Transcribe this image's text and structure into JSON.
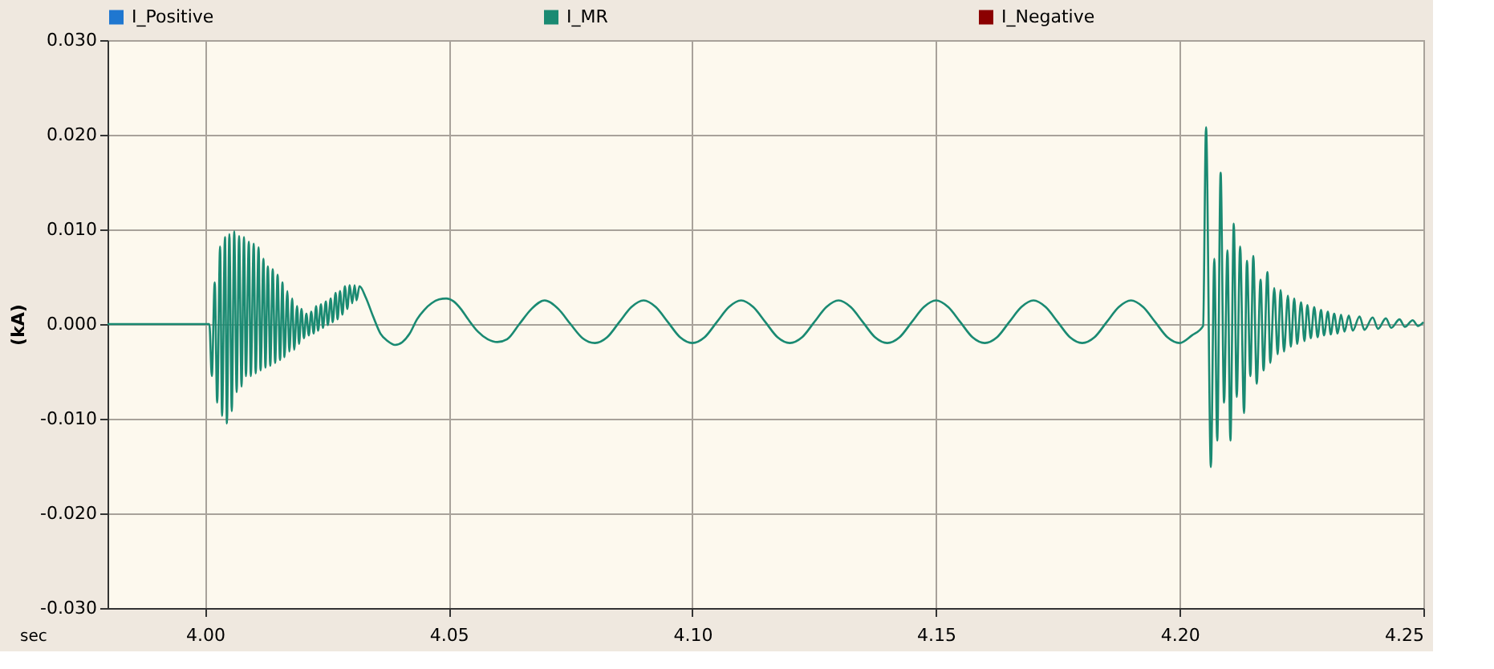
{
  "chart_data": {
    "type": "line",
    "ylabel": "(kA)",
    "xlabel": "sec",
    "xlim": [
      3.98,
      4.25
    ],
    "ylim": [
      -0.03,
      0.03
    ],
    "xticks": [
      {
        "value": 4.0,
        "label": "4.00"
      },
      {
        "value": 4.05,
        "label": "4.05"
      },
      {
        "value": 4.1,
        "label": "4.10"
      },
      {
        "value": 4.15,
        "label": "4.15"
      },
      {
        "value": 4.2,
        "label": "4.20"
      },
      {
        "value": 4.25,
        "label": "4.25"
      }
    ],
    "yticks": [
      {
        "value": -0.03,
        "label": "-0.030"
      },
      {
        "value": -0.02,
        "label": "-0.020"
      },
      {
        "value": -0.01,
        "label": "-0.010"
      },
      {
        "value": 0,
        "label": "0.000"
      },
      {
        "value": 0.01,
        "label": "0.010"
      },
      {
        "value": 0.02,
        "label": "0.020"
      },
      {
        "value": 0.03,
        "label": "0.030"
      }
    ],
    "grid": true,
    "legend": "top",
    "marker": "none",
    "line_style": "solid",
    "series": [
      {
        "name": "I_Positive",
        "color": "#1f77d0"
      },
      {
        "name": "I_MR",
        "color": "#1a8a72",
        "x": [
          3.98,
          4.0009,
          4.0014,
          4.002,
          4.0025,
          4.0031,
          4.0035,
          4.0041,
          4.0045,
          4.005,
          4.0055,
          4.006,
          4.0065,
          4.007,
          4.0075,
          4.008,
          4.0084,
          4.009,
          4.0094,
          4.01,
          4.0104,
          4.011,
          4.0114,
          4.012,
          4.0124,
          4.0129,
          4.0134,
          4.0139,
          4.0144,
          4.0149,
          4.0154,
          4.0159,
          4.0163,
          4.0169,
          4.0173,
          4.0179,
          4.0183,
          4.0189,
          4.0193,
          4.0198,
          4.0203,
          4.0208,
          4.0213,
          4.0218,
          4.0223,
          4.0228,
          4.0232,
          4.0238,
          4.0242,
          4.0248,
          4.0252,
          4.0258,
          4.0262,
          4.0268,
          4.0272,
          4.0277,
          4.0282,
          4.0287,
          4.0292,
          4.0297,
          4.0302,
          4.0307,
          4.0311,
          4.0317,
          4.033,
          4.0345,
          4.036,
          4.0375,
          4.039,
          4.0405,
          4.042,
          4.0435,
          4.045,
          4.0465,
          4.048,
          4.0495,
          4.051,
          4.0525,
          4.054,
          4.056,
          4.058,
          4.06,
          4.062,
          4.0645,
          4.067,
          4.0697,
          4.0725,
          4.075,
          4.0775,
          4.08,
          4.0825,
          4.085,
          4.0875,
          4.09,
          4.0925,
          4.095,
          4.0975,
          4.1,
          4.1025,
          4.105,
          4.1075,
          4.11,
          4.1125,
          4.115,
          4.1175,
          4.12,
          4.1225,
          4.125,
          4.1275,
          4.13,
          4.1325,
          4.135,
          4.1375,
          4.14,
          4.1425,
          4.145,
          4.1475,
          4.15,
          4.1525,
          4.155,
          4.1575,
          4.16,
          4.1625,
          4.165,
          4.1675,
          4.17,
          4.1725,
          4.175,
          4.1775,
          4.18,
          4.1825,
          4.185,
          4.1875,
          4.19,
          4.1925,
          4.195,
          4.1975,
          4.2,
          4.2025,
          4.2048,
          4.2054,
          4.2064,
          4.2071,
          4.2077,
          4.2084,
          4.2091,
          4.2098,
          4.2104,
          4.2111,
          4.2117,
          4.2124,
          4.2132,
          4.2138,
          4.2145,
          4.2151,
          4.2158,
          4.2166,
          4.2172,
          4.218,
          4.2186,
          4.2194,
          4.2201,
          4.2207,
          4.2214,
          4.2222,
          4.2228,
          4.2235,
          4.2241,
          4.2249,
          4.2256,
          4.2262,
          4.2269,
          4.2276,
          4.2283,
          4.229,
          4.2296,
          4.2304,
          4.231,
          4.2317,
          4.2324,
          4.2331,
          4.2338,
          4.2347,
          4.2355,
          4.2369,
          4.2379,
          4.2396,
          4.2407,
          4.2423,
          4.2434,
          4.2451,
          4.2462,
          4.2478,
          4.2489,
          4.25
        ],
        "values": [
          0,
          0,
          -0.0055,
          0.0044,
          -0.0083,
          0.0082,
          -0.0097,
          0.0092,
          -0.0105,
          0.0095,
          -0.0092,
          0.0098,
          -0.0072,
          0.0093,
          -0.0066,
          0.0092,
          -0.0055,
          0.0087,
          -0.0055,
          0.0085,
          -0.0052,
          0.0081,
          -0.0049,
          0.0069,
          -0.0046,
          0.0061,
          -0.0044,
          0.0058,
          -0.0041,
          0.0052,
          -0.0038,
          0.0044,
          -0.0035,
          0.0035,
          -0.0029,
          0.0027,
          -0.0027,
          0.0019,
          -0.0021,
          0.0016,
          -0.0015,
          0.0011,
          -0.0012,
          0.0013,
          -0.001,
          0.0019,
          -0.0007,
          0.0021,
          -0.0004,
          0.0024,
          -0.0001,
          0.0027,
          0.0002,
          0.0033,
          0.0005,
          0.0035,
          0.001,
          0.004,
          0.0016,
          0.0041,
          0.0022,
          0.0041,
          0.0025,
          0.004,
          0.0028,
          0.0008,
          -0.001,
          -0.0018,
          -0.0022,
          -0.0019,
          -0.001,
          0.0005,
          0.0015,
          0.0022,
          0.0026,
          0.0027,
          0.0024,
          0.0016,
          0.0005,
          -0.0008,
          -0.0016,
          -0.0019,
          -0.0016,
          0.0,
          0.0016,
          0.0025,
          0.0016,
          0.0,
          -0.0015,
          -0.002,
          -0.0014,
          0.0002,
          0.0018,
          0.0025,
          0.0018,
          0.0002,
          -0.0014,
          -0.002,
          -0.0014,
          0.0002,
          0.0018,
          0.0025,
          0.0018,
          0.0002,
          -0.0014,
          -0.002,
          -0.0014,
          0.0002,
          0.0018,
          0.0025,
          0.0018,
          0.0002,
          -0.0014,
          -0.002,
          -0.0014,
          0.0002,
          0.0018,
          0.0025,
          0.0018,
          0.0002,
          -0.0014,
          -0.002,
          -0.0014,
          0.0002,
          0.0018,
          0.0025,
          0.0018,
          0.0002,
          -0.0014,
          -0.002,
          -0.0014,
          0.0002,
          0.0018,
          0.0025,
          0.0018,
          0.0002,
          -0.0014,
          -0.002,
          -0.0012,
          -0.0002,
          0.0208,
          -0.0151,
          0.0069,
          -0.0123,
          0.016,
          -0.0083,
          0.0078,
          -0.0123,
          0.0106,
          -0.0077,
          0.0082,
          -0.0094,
          0.0067,
          -0.0055,
          0.0072,
          -0.0063,
          0.0047,
          -0.0049,
          0.0055,
          -0.0041,
          0.0038,
          -0.0032,
          0.0036,
          -0.0029,
          0.003,
          -0.0024,
          0.0027,
          -0.0021,
          0.0023,
          -0.0018,
          0.002,
          -0.0015,
          0.0018,
          -0.0014,
          0.0015,
          -0.0012,
          0.0013,
          -0.0011,
          0.0011,
          -0.001,
          0.001,
          -0.0008,
          0.0009,
          -0.0007,
          0.0008,
          -0.0006,
          0.0007,
          -0.0005,
          0.0006,
          -0.0004,
          0.0005,
          -0.0003,
          0.0004,
          -0.0002,
          0.0002
        ]
      },
      {
        "name": "I_Negative",
        "color": "#8b0000"
      }
    ]
  }
}
